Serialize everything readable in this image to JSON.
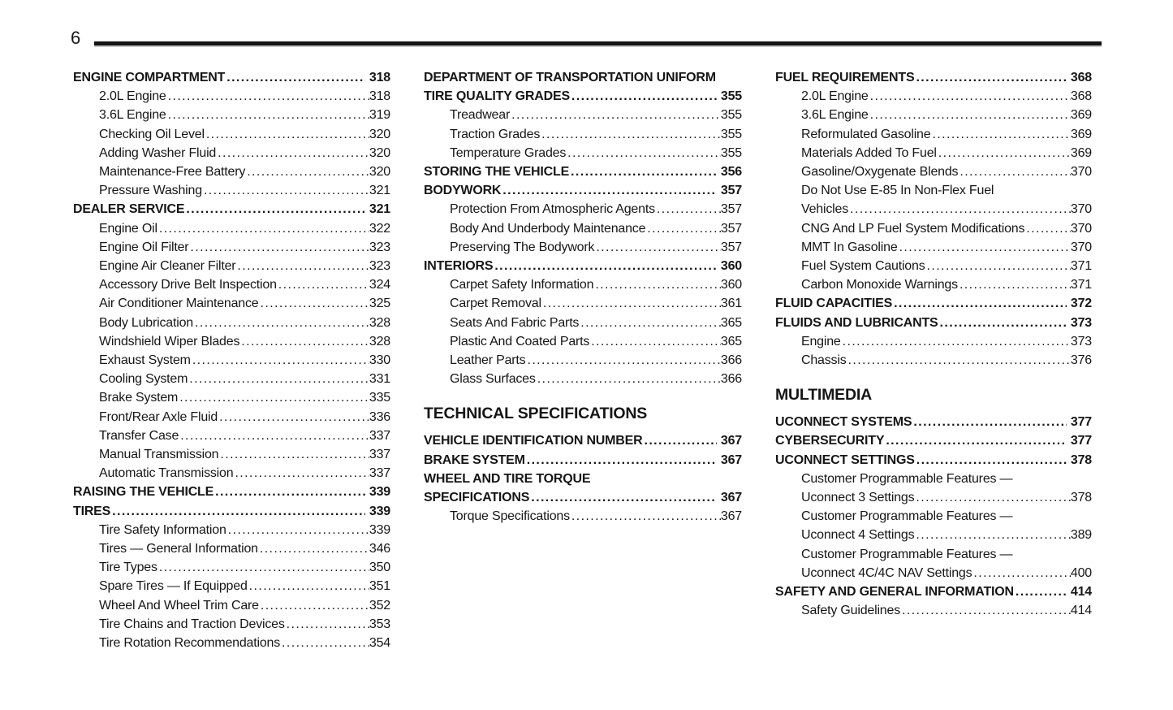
{
  "page": {
    "number": "6"
  },
  "colors": {
    "ink": "#161616",
    "paper": "#ffffff",
    "rule": "#141414"
  },
  "toc": {
    "columns": [
      {
        "items": [
          {
            "type": "chapter",
            "label": "ENGINE COMPARTMENT",
            "page": "318"
          },
          {
            "type": "entry",
            "label": "2.0L Engine",
            "page": "318"
          },
          {
            "type": "entry",
            "label": "3.6L Engine",
            "page": "319"
          },
          {
            "type": "entry",
            "label": "Checking Oil Level",
            "page": "320"
          },
          {
            "type": "entry",
            "label": "Adding Washer Fluid",
            "page": "320"
          },
          {
            "type": "entry",
            "label": "Maintenance-Free Battery",
            "page": "320"
          },
          {
            "type": "entry",
            "label": "Pressure Washing",
            "page": "321"
          },
          {
            "type": "chapter",
            "label": "DEALER SERVICE",
            "page": "321"
          },
          {
            "type": "entry",
            "label": "Engine Oil",
            "page": "322"
          },
          {
            "type": "entry",
            "label": "Engine Oil Filter",
            "page": "323"
          },
          {
            "type": "entry",
            "label": "Engine Air Cleaner Filter",
            "page": "323"
          },
          {
            "type": "entry",
            "label": "Accessory Drive Belt Inspection",
            "page": "324"
          },
          {
            "type": "entry",
            "label": "Air Conditioner Maintenance",
            "page": "325"
          },
          {
            "type": "entry",
            "label": "Body Lubrication",
            "page": "328"
          },
          {
            "type": "entry",
            "label": "Windshield Wiper Blades",
            "page": "328"
          },
          {
            "type": "entry",
            "label": "Exhaust System",
            "page": "330"
          },
          {
            "type": "entry",
            "label": "Cooling System",
            "page": "331"
          },
          {
            "type": "entry",
            "label": "Brake System",
            "page": "335"
          },
          {
            "type": "entry",
            "label": "Front/Rear Axle Fluid",
            "page": "336"
          },
          {
            "type": "entry",
            "label": "Transfer Case",
            "page": "337"
          },
          {
            "type": "entry",
            "label": "Manual Transmission",
            "page": "337"
          },
          {
            "type": "entry",
            "label": "Automatic Transmission",
            "page": "337"
          },
          {
            "type": "chapter",
            "label": "RAISING THE VEHICLE",
            "page": "339"
          },
          {
            "type": "chapter",
            "label": "TIRES",
            "page": "339"
          },
          {
            "type": "entry",
            "label": "Tire Safety Information",
            "page": "339"
          },
          {
            "type": "entry",
            "label": "Tires — General Information",
            "page": "346"
          },
          {
            "type": "entry",
            "label": "Tire Types",
            "page": "350"
          },
          {
            "type": "entry",
            "label": "Spare Tires — If Equipped",
            "page": "351"
          },
          {
            "type": "entry",
            "label": "Wheel And Wheel Trim Care",
            "page": "352"
          },
          {
            "type": "entry",
            "label": "Tire Chains and Traction Devices",
            "page": "353"
          },
          {
            "type": "entry",
            "label": "Tire Rotation Recommendations",
            "page": "354"
          }
        ]
      },
      {
        "items": [
          {
            "type": "chapter-wrap",
            "line1": "DEPARTMENT OF TRANSPORTATION UNIFORM",
            "line2": "TIRE QUALITY GRADES",
            "page": "355"
          },
          {
            "type": "entry",
            "label": "Treadwear",
            "page": "355"
          },
          {
            "type": "entry",
            "label": "Traction Grades",
            "page": "355"
          },
          {
            "type": "entry",
            "label": "Temperature Grades",
            "page": "355"
          },
          {
            "type": "chapter",
            "label": "STORING THE VEHICLE",
            "page": "356"
          },
          {
            "type": "chapter",
            "label": "BODYWORK",
            "page": "357"
          },
          {
            "type": "entry",
            "label": "Protection From Atmospheric Agents",
            "page": "357"
          },
          {
            "type": "entry",
            "label": "Body And Underbody Maintenance",
            "page": "357"
          },
          {
            "type": "entry",
            "label": "Preserving The Bodywork",
            "page": "357"
          },
          {
            "type": "chapter",
            "label": "INTERIORS",
            "page": "360"
          },
          {
            "type": "entry",
            "label": "Carpet Safety Information",
            "page": "360"
          },
          {
            "type": "entry",
            "label": "Carpet Removal",
            "page": "361"
          },
          {
            "type": "entry",
            "label": "Seats And Fabric Parts",
            "page": "365"
          },
          {
            "type": "entry",
            "label": "Plastic And Coated Parts",
            "page": "365"
          },
          {
            "type": "entry",
            "label": "Leather Parts",
            "page": "366"
          },
          {
            "type": "entry",
            "label": "Glass Surfaces",
            "page": "366"
          },
          {
            "type": "section",
            "label": "TECHNICAL SPECIFICATIONS"
          },
          {
            "type": "chapter",
            "label": "VEHICLE IDENTIFICATION NUMBER",
            "page": "367"
          },
          {
            "type": "chapter",
            "label": "BRAKE SYSTEM",
            "page": "367"
          },
          {
            "type": "chapter-wrap",
            "line1": "WHEEL AND TIRE TORQUE",
            "line2": "SPECIFICATIONS",
            "page": "367"
          },
          {
            "type": "entry",
            "label": "Torque Specifications",
            "page": "367"
          }
        ]
      },
      {
        "items": [
          {
            "type": "chapter",
            "label": "FUEL REQUIREMENTS",
            "page": "368"
          },
          {
            "type": "entry",
            "label": "2.0L Engine",
            "page": "368"
          },
          {
            "type": "entry",
            "label": "3.6L Engine",
            "page": "369"
          },
          {
            "type": "entry",
            "label": "Reformulated Gasoline",
            "page": "369"
          },
          {
            "type": "entry",
            "label": "Materials Added To Fuel",
            "page": "369"
          },
          {
            "type": "entry",
            "label": "Gasoline/Oxygenate Blends",
            "page": "370"
          },
          {
            "type": "entry-wrap",
            "line1": "Do Not Use E-85 In Non-Flex Fuel",
            "line2": "Vehicles",
            "page": "370"
          },
          {
            "type": "entry",
            "label": "CNG And LP Fuel System Modifications",
            "page": "370"
          },
          {
            "type": "entry",
            "label": "MMT In Gasoline",
            "page": "370"
          },
          {
            "type": "entry",
            "label": "Fuel System Cautions",
            "page": "371"
          },
          {
            "type": "entry",
            "label": "Carbon Monoxide Warnings",
            "page": "371"
          },
          {
            "type": "chapter",
            "label": "FLUID CAPACITIES",
            "page": "372"
          },
          {
            "type": "chapter",
            "label": "FLUIDS AND LUBRICANTS",
            "page": "373"
          },
          {
            "type": "entry",
            "label": "Engine",
            "page": "373"
          },
          {
            "type": "entry",
            "label": "Chassis",
            "page": "376"
          },
          {
            "type": "section",
            "label": "MULTIMEDIA"
          },
          {
            "type": "chapter",
            "label": "UCONNECT SYSTEMS",
            "page": "377"
          },
          {
            "type": "chapter",
            "label": "CYBERSECURITY",
            "page": "377"
          },
          {
            "type": "chapter",
            "label": "UCONNECT SETTINGS",
            "page": "378"
          },
          {
            "type": "entry-wrap",
            "line1": "Customer Programmable Features —",
            "line2": "Uconnect 3 Settings",
            "page": "378"
          },
          {
            "type": "entry-wrap",
            "line1": "Customer Programmable Features —",
            "line2": "Uconnect 4 Settings",
            "page": "389"
          },
          {
            "type": "entry-wrap",
            "line1": "Customer Programmable Features —",
            "line2": "Uconnect 4C/4C NAV Settings",
            "page": "400"
          },
          {
            "type": "chapter",
            "label": "SAFETY AND GENERAL INFORMATION",
            "page": "414"
          },
          {
            "type": "entry",
            "label": "Safety Guidelines",
            "page": "414"
          }
        ]
      }
    ]
  }
}
